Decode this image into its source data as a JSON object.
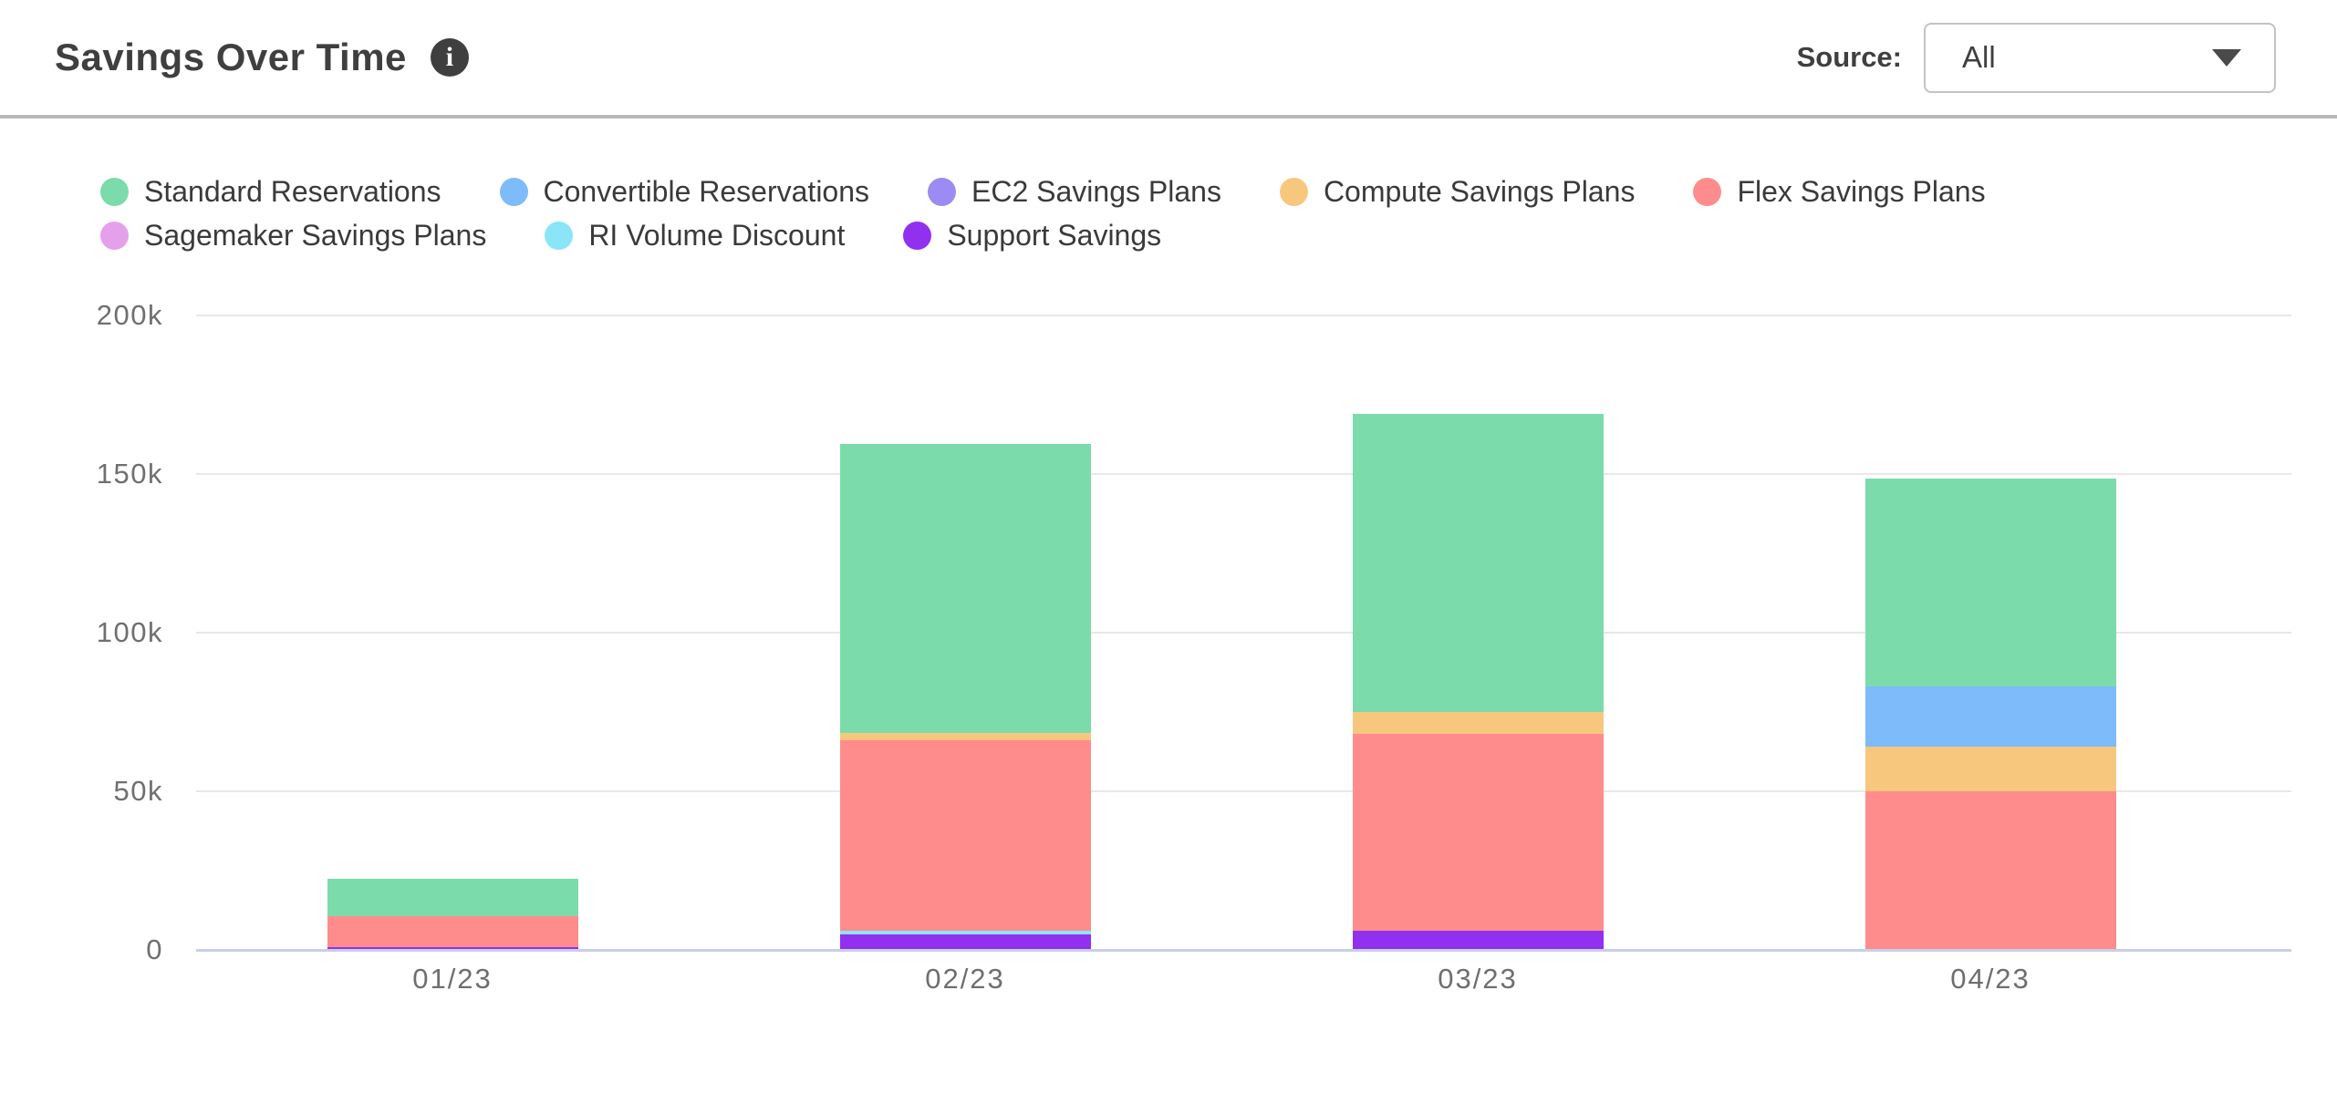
{
  "header": {
    "title": "Savings Over Time",
    "info_icon": "info-circle",
    "source_label": "Source:",
    "source_value": "All"
  },
  "colors": {
    "standard": "#7cdbaa",
    "convertible": "#7ebbfb",
    "ec2": "#9c8bf2",
    "compute": "#f8c77e",
    "flex": "#fe8c8c",
    "sagemaker": "#e5a0ec",
    "ri_volume": "#8be5f8",
    "support": "#9230f0",
    "grid": "#e8e8e8",
    "axis_line": "#c9cfe8",
    "tick_text": "#6f6f6f"
  },
  "chart_data": {
    "type": "bar",
    "stacked": true,
    "title": "Savings Over Time",
    "xlabel": "",
    "ylabel": "",
    "categories": [
      "01/23",
      "02/23",
      "03/23",
      "04/23"
    ],
    "series": [
      {
        "name": "Standard Reservations",
        "color": "#7cdbaa",
        "values": [
          12000,
          91000,
          94000,
          65500
        ]
      },
      {
        "name": "Convertible Reservations",
        "color": "#7ebbfb",
        "values": [
          0,
          0,
          0,
          19000
        ]
      },
      {
        "name": "EC2 Savings Plans",
        "color": "#9c8bf2",
        "values": [
          0,
          0,
          0,
          0
        ]
      },
      {
        "name": "Compute Savings Plans",
        "color": "#f8c77e",
        "values": [
          0,
          2500,
          7000,
          14000
        ]
      },
      {
        "name": "Flex Savings Plans",
        "color": "#fe8c8c",
        "values": [
          9500,
          60000,
          62000,
          50000
        ]
      },
      {
        "name": "Sagemaker Savings Plans",
        "color": "#e5a0ec",
        "values": [
          0,
          0,
          0,
          0
        ]
      },
      {
        "name": "RI Volume Discount",
        "color": "#8be5f8",
        "values": [
          0,
          1000,
          0,
          0
        ]
      },
      {
        "name": "Support Savings",
        "color": "#9230f0",
        "values": [
          1000,
          5000,
          6000,
          0
        ]
      }
    ],
    "stack_order_bottom_to_top": [
      "Support Savings",
      "RI Volume Discount",
      "Sagemaker Savings Plans",
      "Flex Savings Plans",
      "Compute Savings Plans",
      "EC2 Savings Plans",
      "Convertible Reservations",
      "Standard Reservations"
    ],
    "ylim": [
      0,
      200000
    ],
    "y_ticks": [
      {
        "value": 0,
        "label": "0"
      },
      {
        "value": 50000,
        "label": "50k"
      },
      {
        "value": 100000,
        "label": "100k"
      },
      {
        "value": 150000,
        "label": "150k"
      },
      {
        "value": 200000,
        "label": "200k"
      }
    ],
    "grid": true,
    "legend_position": "top",
    "legend_rows": [
      [
        0,
        5
      ],
      [
        5,
        8
      ]
    ]
  }
}
